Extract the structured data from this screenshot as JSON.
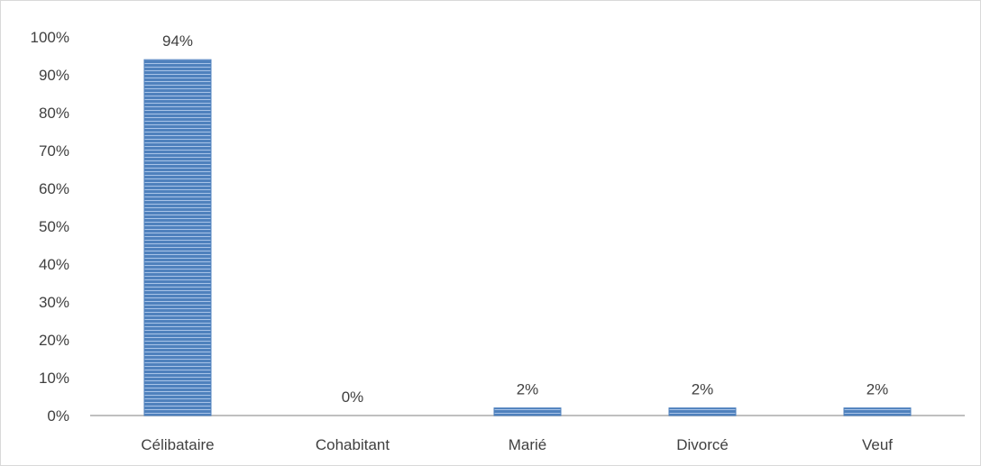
{
  "chart_data": {
    "type": "bar",
    "categories": [
      "Célibataire",
      "Cohabitant",
      "Marié",
      "Divorcé",
      "Veuf"
    ],
    "values": [
      94,
      0,
      2,
      2,
      2
    ],
    "data_labels": [
      "94%",
      "0%",
      "2%",
      "2%",
      "2%"
    ],
    "title": "",
    "xlabel": "",
    "ylabel": "",
    "ylim": [
      0,
      100
    ],
    "y_ticks": [
      0,
      10,
      20,
      30,
      40,
      50,
      60,
      70,
      80,
      90,
      100
    ],
    "y_tick_labels": [
      "0%",
      "10%",
      "20%",
      "30%",
      "40%",
      "50%",
      "60%",
      "70%",
      "80%",
      "90%",
      "100%"
    ],
    "grid": false,
    "legend": "none",
    "bar_color": "#4f81bd",
    "bar_stripe_color": "#a9c4e8",
    "axis_color": "#bfbfbf"
  }
}
